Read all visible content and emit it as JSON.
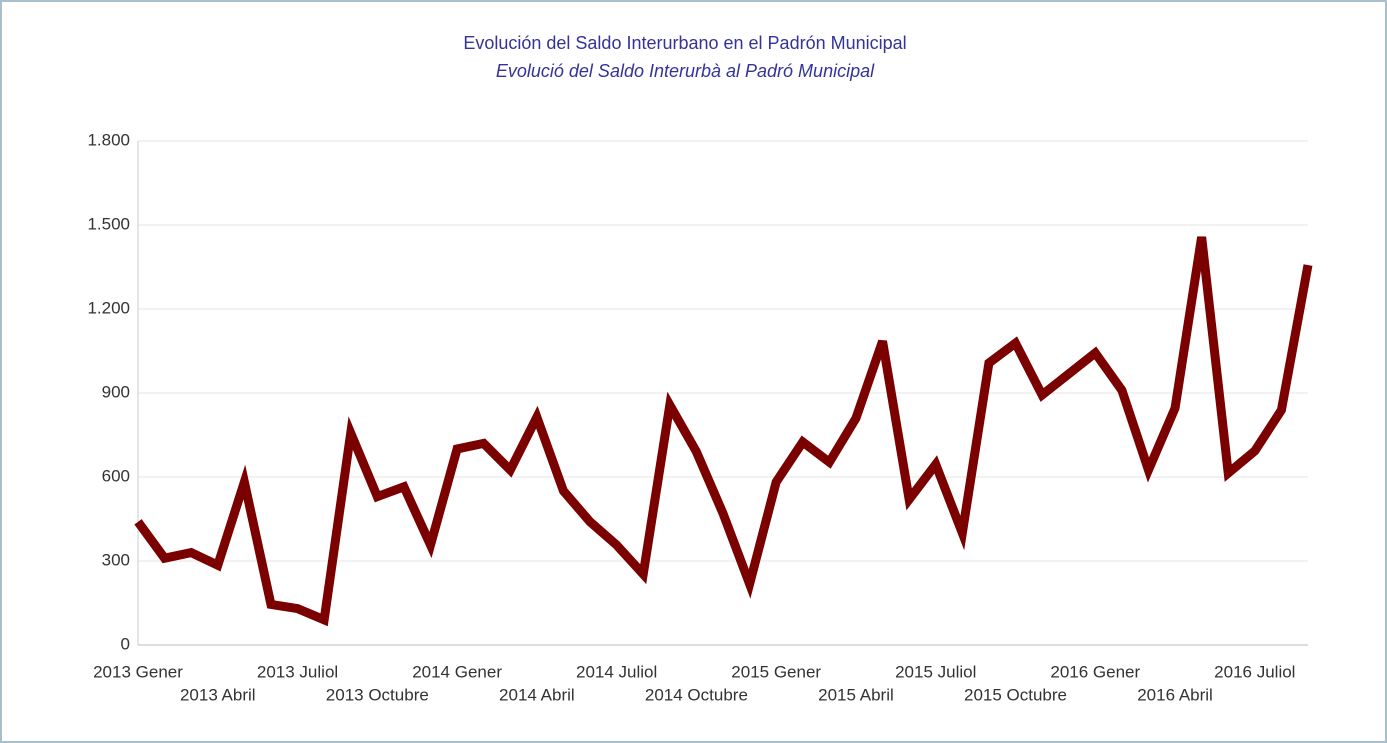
{
  "chart_data": {
    "type": "line",
    "title": "Evolución del Saldo Interurbano en el Padrón Municipal",
    "subtitle": "Evolució del Saldo Interurbà al Padró Municipal",
    "categories": [
      "2013 Gener",
      null,
      null,
      "2013 Abril",
      null,
      null,
      "2013 Juliol",
      null,
      null,
      "2013 Octubre",
      null,
      null,
      "2014 Gener",
      null,
      null,
      "2014 Abril",
      null,
      null,
      "2014 Juliol",
      null,
      null,
      "2014 Octubre",
      null,
      null,
      "2015 Gener",
      null,
      null,
      "2015 Abril",
      null,
      null,
      "2015 Juliol",
      null,
      null,
      "2015 Octubre",
      null,
      null,
      "2016 Gener",
      null,
      null,
      "2016 Abril",
      null,
      null,
      "2016 Juliol",
      null,
      null
    ],
    "series": [
      {
        "color": "#7b0000",
        "values": [
          440,
          310,
          330,
          285,
          582,
          145,
          130,
          90,
          757,
          530,
          565,
          357,
          700,
          720,
          625,
          814,
          550,
          440,
          357,
          253,
          857,
          690,
          470,
          218,
          582,
          725,
          653,
          810,
          1085,
          520,
          645,
          400,
          1007,
          1078,
          893,
          968,
          1043,
          910,
          625,
          846,
          1457,
          614,
          693,
          839,
          1357
        ]
      }
    ],
    "ylim": [
      0,
      1800
    ],
    "yticks": [
      0,
      {
        "value": 300,
        "label": "300"
      },
      {
        "value": 600,
        "label": "600"
      },
      {
        "value": 900,
        "label": "900"
      },
      {
        "value": 1200,
        "label": "1.200"
      },
      {
        "value": 1500,
        "label": "1.500"
      },
      {
        "value": 1800,
        "label": "1.800"
      }
    ],
    "grid": true
  }
}
